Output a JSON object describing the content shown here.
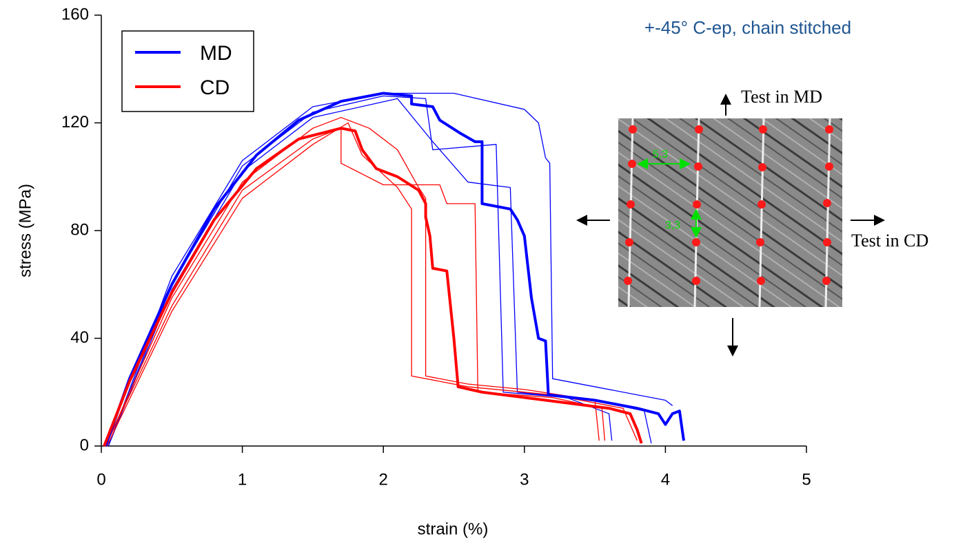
{
  "chart_data": {
    "type": "line",
    "title": "+-45° C-ep, chain stitched",
    "x_label": "strain (%)",
    "y_label": "stress (MPa)",
    "xlim": [
      0,
      5
    ],
    "xticks": [
      0,
      1,
      2,
      3,
      4,
      5
    ],
    "ylim": [
      0,
      160
    ],
    "yticks": [
      0,
      40,
      80,
      120,
      160
    ],
    "grid": false,
    "legend": "upper left",
    "series": [
      {
        "name": "MD",
        "color": "#0000ff",
        "line_style": "thick",
        "x": [
          0.03,
          0.2,
          0.5,
          0.8,
          1.1,
          1.4,
          1.7,
          2.0,
          2.2,
          2.2,
          2.35,
          2.4,
          2.55,
          2.65,
          2.7,
          2.7,
          2.9,
          2.95,
          3.0,
          3.05,
          3.1,
          3.15,
          3.17,
          3.5,
          3.8,
          3.95,
          4.0,
          4.05,
          4.1,
          4.13
        ],
        "values": [
          0,
          25,
          60,
          88,
          108,
          121,
          128,
          131,
          130,
          127,
          126,
          121,
          116,
          113,
          113,
          90,
          88,
          84,
          78,
          55,
          40,
          39,
          19,
          17,
          14,
          12,
          8,
          12,
          13,
          2
        ]
      },
      {
        "name": "CD",
        "color": "#ff0000",
        "line_style": "thick",
        "x": [
          0.02,
          0.2,
          0.5,
          0.8,
          1.1,
          1.4,
          1.7,
          1.8,
          1.85,
          1.95,
          2.1,
          2.25,
          2.3,
          2.3,
          2.33,
          2.35,
          2.45,
          2.5,
          2.53,
          2.7,
          3.0,
          3.3,
          3.6,
          3.75,
          3.8,
          3.83
        ],
        "values": [
          0,
          24,
          57,
          84,
          103,
          114,
          118,
          117,
          110,
          103,
          100,
          95,
          90,
          85,
          78,
          66,
          65,
          40,
          22,
          20,
          18,
          16,
          14,
          12,
          6,
          1
        ]
      },
      {
        "color": "#0000ff",
        "line_style": "thin",
        "x": [
          0.05,
          0.5,
          1,
          1.5,
          2,
          2.5,
          3,
          3.1,
          3.15,
          3.18,
          3.2,
          3.5,
          4.0,
          4.05
        ],
        "values": [
          0,
          63,
          106,
          126,
          131,
          131,
          125,
          120,
          107,
          105,
          25,
          22,
          17,
          15
        ]
      },
      {
        "color": "#0000ff",
        "line_style": "thin",
        "x": [
          0.05,
          0.5,
          1,
          1.5,
          2.0,
          2.3,
          2.35,
          2.8,
          2.85,
          3.3,
          3.6,
          3.62
        ],
        "values": [
          0,
          60,
          104,
          124,
          130,
          129,
          110,
          112,
          20,
          18,
          12,
          2
        ]
      },
      {
        "color": "#0000ff",
        "line_style": "thin",
        "x": [
          0.05,
          0.5,
          1,
          1.5,
          2.1,
          2.35,
          2.6,
          2.9,
          2.95,
          3.5,
          3.85,
          3.9
        ],
        "values": [
          0,
          58,
          102,
          122,
          129,
          113,
          98,
          96,
          20,
          17,
          13,
          1
        ]
      },
      {
        "color": "#ff0000",
        "line_style": "thin",
        "x": [
          0.03,
          0.5,
          1,
          1.5,
          1.7,
          1.9,
          2.1,
          2.25,
          2.3,
          2.3,
          2.6,
          3.0,
          3.5,
          3.53
        ],
        "values": [
          0,
          55,
          98,
          118,
          122,
          118,
          110,
          96,
          92,
          26,
          23,
          21,
          17,
          2
        ]
      },
      {
        "color": "#ff0000",
        "line_style": "thin",
        "x": [
          0.03,
          0.5,
          1,
          1.5,
          1.7,
          1.7,
          2.0,
          2.4,
          2.45,
          2.65,
          2.67,
          3.2,
          3.55,
          3.57
        ],
        "values": [
          0,
          52,
          95,
          114,
          118,
          105,
          97,
          97,
          90,
          90,
          20,
          18,
          14,
          2
        ]
      },
      {
        "color": "#ff0000",
        "line_style": "thin",
        "x": [
          0.04,
          0.5,
          1,
          1.5,
          1.75,
          1.85,
          2.1,
          2.2,
          2.2,
          2.6,
          3.2,
          3.7,
          3.8
        ],
        "values": [
          0,
          50,
          92,
          112,
          120,
          108,
          96,
          88,
          26,
          22,
          19,
          14,
          2
        ]
      }
    ],
    "inset": {
      "test_md": "Test in MD",
      "test_cd": "Test in CD",
      "spacing_h": "5,3",
      "spacing_v": "3,3"
    }
  }
}
